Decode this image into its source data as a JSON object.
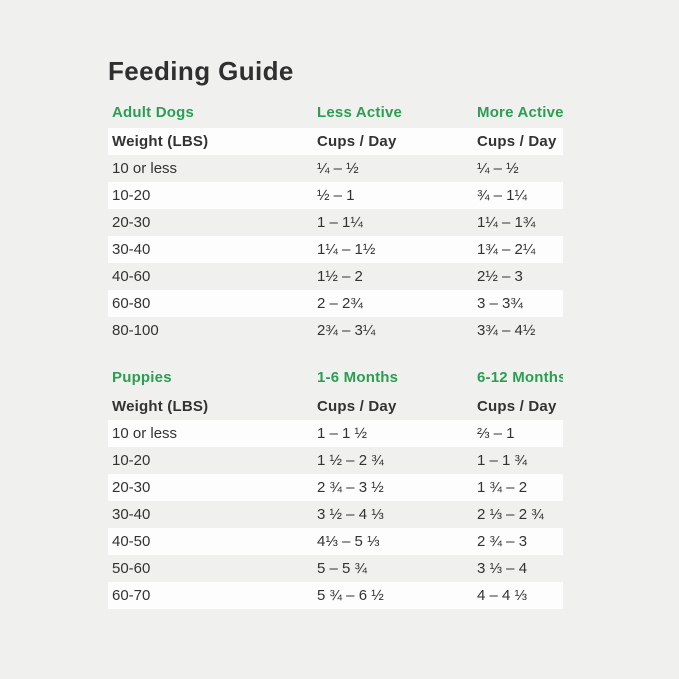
{
  "page": {
    "title": "Feeding Guide"
  },
  "colors": {
    "accent_green": "#2C9E53",
    "background": "#F0F0EF",
    "row_white": "#FDFDFD",
    "text_dark": "#333333",
    "title_dark": "#2F2F2F"
  },
  "sections": [
    {
      "id": "adult-dogs",
      "header": {
        "title": "Adult Dogs",
        "col2": "Less Active",
        "col3": "More Active"
      },
      "subheader": {
        "col1": "Weight (LBS)",
        "col2": "Cups / Day",
        "col3": "Cups / Day"
      },
      "rows": [
        {
          "weight": "10 or less",
          "col2": "¼ – ½",
          "col3": "¼ – ½"
        },
        {
          "weight": "10-20",
          "col2": "½ – 1",
          "col3": "¾ – 1¼"
        },
        {
          "weight": "20-30",
          "col2": "1 – 1¼",
          "col3": "1¼ – 1¾"
        },
        {
          "weight": "30-40",
          "col2": "1¼ – 1½",
          "col3": "1¾ – 2¼"
        },
        {
          "weight": "40-60",
          "col2": "1½ – 2",
          "col3": "2½ – 3"
        },
        {
          "weight": "60-80",
          "col2": "2 – 2¾",
          "col3": "3 – 3¾"
        },
        {
          "weight": "80-100",
          "col2": "2¾ – 3¼",
          "col3": "3¾ – 4½"
        }
      ]
    },
    {
      "id": "puppies",
      "header": {
        "title": "Puppies",
        "col2": "1-6 Months",
        "col3": "6-12 Months"
      },
      "subheader": {
        "col1": "Weight (LBS)",
        "col2": "Cups / Day",
        "col3": "Cups / Day"
      },
      "rows": [
        {
          "weight": "10 or less",
          "col2": "1 – 1 ½",
          "col3": "⅔ – 1"
        },
        {
          "weight": "10-20",
          "col2": "1 ½ – 2 ¾",
          "col3": "1 – 1 ¾"
        },
        {
          "weight": "20-30",
          "col2": "2 ¾ – 3 ½",
          "col3": "1 ¾ – 2"
        },
        {
          "weight": "30-40",
          "col2": "3 ½ – 4 ⅓",
          "col3": "2 ⅓ – 2 ¾"
        },
        {
          "weight": "40-50",
          "col2": "4⅓ – 5 ⅓",
          "col3": "2 ¾ – 3"
        },
        {
          "weight": "50-60",
          "col2": "5 – 5 ¾",
          "col3": "3 ⅓ – 4"
        },
        {
          "weight": "60-70",
          "col2": "5 ¾ – 6 ½",
          "col3": "4 – 4 ⅓"
        }
      ]
    }
  ]
}
